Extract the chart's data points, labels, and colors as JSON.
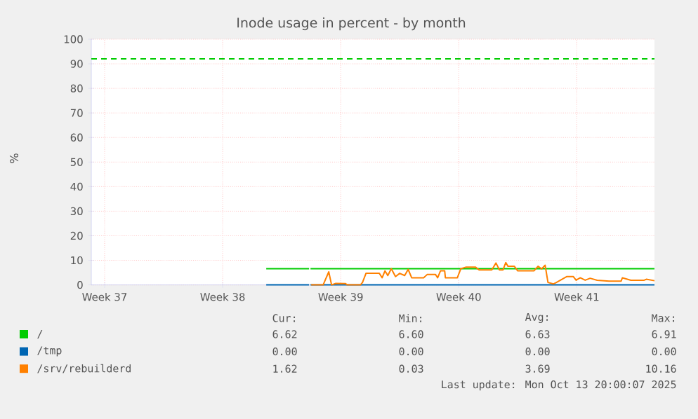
{
  "chart_data": {
    "type": "line",
    "title": "Inode usage in percent - by month",
    "ylabel": "%",
    "x": [
      "2025-09-20T19:00",
      "2025-09-23T08:00",
      "2025-09-23T09:00",
      "2025-09-23T10:00",
      "2025-10-13T19:36"
    ],
    "xlim": [
      "2025-09-10T10:00",
      "2025-10-13T19:36"
    ],
    "xticks": [
      {
        "value": "2025-09-11T05:00",
        "label": "Week 37"
      },
      {
        "value": "2025-09-18T05:00",
        "label": "Week 38"
      },
      {
        "value": "2025-09-25T05:00",
        "label": "Week 39"
      },
      {
        "value": "2025-10-02T05:00",
        "label": "Week 40"
      },
      {
        "value": "2025-10-09T05:00",
        "label": "Week 41"
      }
    ],
    "ylim": [
      0,
      100
    ],
    "yticks": [
      0,
      10,
      20,
      30,
      40,
      50,
      60,
      70,
      80,
      90,
      100
    ],
    "grid": true,
    "legend": "bottom",
    "series": [
      {
        "name": "/",
        "color": "#00cc00",
        "values": [
          6.6,
          6.6,
          null,
          6.6,
          6.6
        ]
      },
      {
        "name": "/tmp",
        "color": "#0066b3",
        "values": [
          0,
          0,
          null,
          0,
          0
        ]
      },
      {
        "name": "/srv/rebuilderd",
        "color": "#ff8000",
        "x": [
          "2025-09-23T11:00",
          "2025-09-24T04:00",
          "2025-09-24T12:00",
          "2025-09-24T16:00",
          "2025-09-24T22:00",
          "2025-09-25T12:00",
          "2025-09-25T14:00",
          "2025-09-26T09:00",
          "2025-09-26T12:00",
          "2025-09-26T17:00",
          "2025-09-27T12:00",
          "2025-09-27T16:00",
          "2025-09-27T20:00",
          "2025-09-28T00:00",
          "2025-09-28T05:00",
          "2025-09-28T11:00",
          "2025-09-28T17:00",
          "2025-09-29T00:00",
          "2025-09-29T05:00",
          "2025-09-29T10:00",
          "2025-09-30T03:00",
          "2025-09-30T08:00",
          "2025-09-30T20:00",
          "2025-09-30T23:00",
          "2025-10-01T03:00",
          "2025-10-01T09:00",
          "2025-10-01T10:00",
          "2025-10-02T03:00",
          "2025-10-02T08:00",
          "2025-10-02T15:00",
          "2025-10-03T05:00",
          "2025-10-03T10:00",
          "2025-10-04T04:00",
          "2025-10-04T10:00",
          "2025-10-04T15:00",
          "2025-10-04T20:00",
          "2025-10-05T00:00",
          "2025-10-05T03:00",
          "2025-10-05T12:00",
          "2025-10-05T17:00",
          "2025-10-06T16:00",
          "2025-10-06T22:00",
          "2025-10-07T03:00",
          "2025-10-07T08:00",
          "2025-10-07T12:00",
          "2025-10-07T20:00",
          "2025-10-08T00:00",
          "2025-10-08T15:00",
          "2025-10-09T00:00",
          "2025-10-09T04:00",
          "2025-10-09T10:00",
          "2025-10-09T17:00",
          "2025-10-10T00:00",
          "2025-10-10T10:00",
          "2025-10-11T03:00",
          "2025-10-11T20:00",
          "2025-10-11T22:00",
          "2025-10-12T10:00",
          "2025-10-13T05:00",
          "2025-10-13T08:00",
          "2025-10-13T19:36"
        ],
        "values": [
          0,
          0,
          5.3,
          0,
          0.6,
          0.5,
          0,
          0,
          1,
          4.7,
          4.7,
          2.9,
          5.7,
          3.8,
          6.6,
          3.4,
          4.7,
          3.8,
          6.3,
          2.9,
          2.9,
          4.2,
          4.2,
          2.9,
          5.7,
          5.7,
          2.9,
          2.9,
          6.6,
          7.2,
          7.2,
          6.1,
          6.1,
          8.9,
          6.1,
          6.1,
          9.1,
          7.6,
          7.6,
          5.7,
          5.7,
          7.6,
          6.5,
          8,
          1,
          0.4,
          1,
          3.4,
          3.4,
          1.9,
          2.9,
          1.9,
          2.7,
          1.9,
          1.5,
          1.5,
          2.9,
          1.9,
          1.9,
          2.3,
          1.7
        ]
      }
    ],
    "ref_lines": [
      {
        "axis": "y",
        "value": 92,
        "color": "#00cc00",
        "line_style": "dashed"
      }
    ],
    "annotations": [
      "Cur:",
      "Min:",
      "Avg:",
      "Max:",
      "6.62",
      "6.60",
      "6.63",
      "6.91",
      "0.00",
      "0.00",
      "0.00",
      "0.00",
      "1.62",
      "0.03",
      "3.69",
      "10.16",
      "Last update: Mon Oct 13 20:00:07 2025"
    ]
  }
}
